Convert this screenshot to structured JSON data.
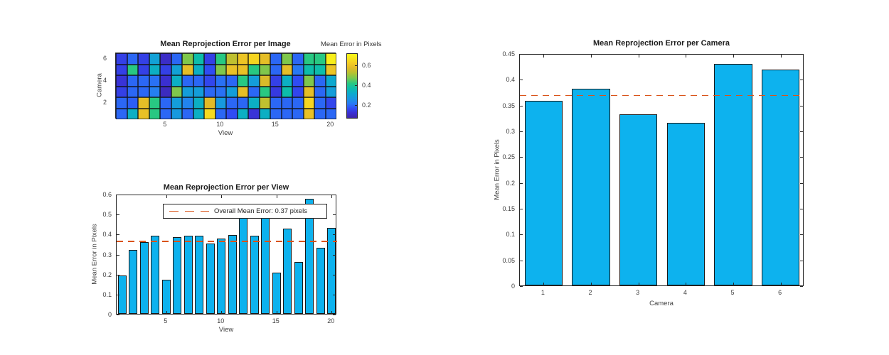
{
  "figure": {
    "background": "#ffffff",
    "bar_color": "#0db2ee",
    "bar_edge_color": "#1a1a1a",
    "mean_line_color": "#d95319",
    "axis_color": "#262626",
    "tick_label_color": "#3f3f3f"
  },
  "chart_data": [
    {
      "type": "heatmap",
      "title": "Mean Reprojection Error per Image",
      "xlabel": "View",
      "ylabel": "Camera",
      "x_ticks": [
        "5",
        "10",
        "15",
        "20"
      ],
      "x_tick_values": [
        5,
        10,
        15,
        20
      ],
      "y_ticks": [
        "6",
        "4",
        "2"
      ],
      "y_tick_values": [
        6,
        4,
        2
      ],
      "views": [
        1,
        2,
        3,
        4,
        5,
        6,
        7,
        8,
        9,
        10,
        11,
        12,
        13,
        14,
        15,
        16,
        17,
        18,
        19,
        20
      ],
      "rows": [
        {
          "camera": 6,
          "values": [
            0.14,
            0.19,
            0.14,
            0.29,
            0.1,
            0.19,
            0.48,
            0.37,
            0.14,
            0.42,
            0.54,
            0.61,
            0.65,
            0.59,
            0.19,
            0.48,
            0.19,
            0.42,
            0.42,
            0.7
          ]
        },
        {
          "camera": 5,
          "values": [
            0.14,
            0.42,
            0.14,
            0.33,
            0.14,
            0.29,
            0.59,
            0.33,
            0.16,
            0.48,
            0.6,
            0.6,
            0.42,
            0.48,
            0.19,
            0.59,
            0.21,
            0.37,
            0.37,
            0.61
          ]
        },
        {
          "camera": 4,
          "values": [
            0.12,
            0.19,
            0.19,
            0.2,
            0.11,
            0.33,
            0.19,
            0.19,
            0.15,
            0.2,
            0.19,
            0.42,
            0.28,
            0.57,
            0.14,
            0.33,
            0.16,
            0.48,
            0.19,
            0.31
          ]
        },
        {
          "camera": 3,
          "values": [
            0.14,
            0.19,
            0.19,
            0.22,
            0.09,
            0.48,
            0.28,
            0.28,
            0.19,
            0.2,
            0.28,
            0.59,
            0.19,
            0.42,
            0.13,
            0.37,
            0.15,
            0.59,
            0.19,
            0.28
          ]
        },
        {
          "camera": 2,
          "values": [
            0.19,
            0.18,
            0.59,
            0.42,
            0.19,
            0.28,
            0.23,
            0.33,
            0.58,
            0.27,
            0.19,
            0.19,
            0.33,
            0.54,
            0.19,
            0.19,
            0.19,
            0.65,
            0.19,
            0.15
          ]
        },
        {
          "camera": 1,
          "values": [
            0.19,
            0.33,
            0.6,
            0.42,
            0.19,
            0.27,
            0.19,
            0.33,
            0.66,
            0.19,
            0.16,
            0.33,
            0.12,
            0.33,
            0.19,
            0.19,
            0.19,
            0.6,
            0.19,
            0.19
          ]
        }
      ],
      "colorbar": {
        "title": "Mean Error in Pixels",
        "ticks": [
          "0.6",
          "0.4",
          "0.2"
        ],
        "tick_values": [
          0.6,
          0.4,
          0.2
        ],
        "range": [
          0.062,
          0.726
        ],
        "colormap": "parula"
      }
    },
    {
      "type": "bar",
      "title": "Mean Reprojection Error per View",
      "xlabel": "View",
      "ylabel": "Mean Error in Pixels",
      "categories": [
        1,
        2,
        3,
        4,
        5,
        6,
        7,
        8,
        9,
        10,
        11,
        12,
        13,
        14,
        15,
        16,
        17,
        18,
        19,
        20
      ],
      "values": [
        0.19,
        0.32,
        0.36,
        0.39,
        0.17,
        0.385,
        0.39,
        0.39,
        0.35,
        0.375,
        0.395,
        0.485,
        0.39,
        0.485,
        0.205,
        0.425,
        0.26,
        0.575,
        0.33,
        0.43
      ],
      "ylim": [
        0,
        0.6
      ],
      "y_ticks": [
        "0",
        "0.1",
        "0.2",
        "0.3",
        "0.4",
        "0.5",
        "0.6"
      ],
      "y_tick_values": [
        0,
        0.1,
        0.2,
        0.3,
        0.4,
        0.5,
        0.6
      ],
      "x_ticks": [
        "5",
        "10",
        "15",
        "20"
      ],
      "x_tick_values": [
        5,
        10,
        15,
        20
      ],
      "mean_line": 0.372,
      "legend": {
        "label": "Overall Mean Error: 0.37 pixels",
        "position": "top-center"
      }
    },
    {
      "type": "bar",
      "title": "Mean Reprojection Error per Camera",
      "xlabel": "Camera",
      "ylabel": "Mean Error in Pixels",
      "categories": [
        1,
        2,
        3,
        4,
        5,
        6
      ],
      "values": [
        0.358,
        0.381,
        0.331,
        0.315,
        0.43,
        0.419
      ],
      "ylim": [
        0,
        0.45
      ],
      "y_ticks": [
        "0",
        "0.05",
        "0.1",
        "0.15",
        "0.2",
        "0.25",
        "0.3",
        "0.35",
        "0.4",
        "0.45"
      ],
      "y_tick_values": [
        0,
        0.05,
        0.1,
        0.15,
        0.2,
        0.25,
        0.3,
        0.35,
        0.4,
        0.45
      ],
      "x_ticks": [
        "1",
        "2",
        "3",
        "4",
        "5",
        "6"
      ],
      "x_tick_values": [
        1,
        2,
        3,
        4,
        5,
        6
      ],
      "mean_line": 0.372
    }
  ]
}
